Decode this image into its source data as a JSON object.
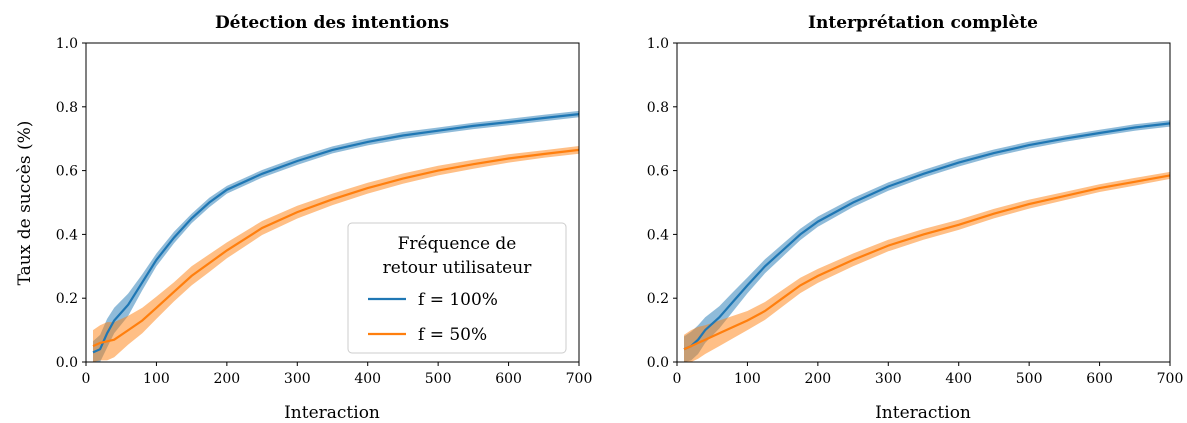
{
  "chart_data": [
    {
      "type": "line",
      "title": "Détection des intentions",
      "xlabel": "Interaction",
      "ylabel": "Taux de succès (%)",
      "xlim": [
        0,
        700
      ],
      "ylim": [
        0,
        1.0
      ],
      "xticks": [
        "0",
        "100",
        "200",
        "300",
        "400",
        "500",
        "600",
        "700"
      ],
      "yticks": [
        "0.0",
        "0.2",
        "0.4",
        "0.6",
        "0.8",
        "1.0"
      ],
      "grid": false,
      "legend": {
        "title": "Fréquence de\nretour utilisateur",
        "placement": "lower-right"
      },
      "series": [
        {
          "name": "f = 100%",
          "color": "#1f77b4",
          "x": [
            10,
            20,
            30,
            40,
            60,
            80,
            100,
            125,
            150,
            175,
            200,
            250,
            300,
            350,
            400,
            450,
            500,
            550,
            600,
            650,
            700
          ],
          "y": [
            0.03,
            0.04,
            0.09,
            0.13,
            0.18,
            0.25,
            0.32,
            0.39,
            0.45,
            0.5,
            0.54,
            0.59,
            0.63,
            0.665,
            0.69,
            0.71,
            0.725,
            0.74,
            0.752,
            0.765,
            0.777
          ],
          "band": [
            0.035,
            0.045,
            0.045,
            0.04,
            0.035,
            0.025,
            0.02,
            0.018,
            0.015,
            0.015,
            0.012,
            0.012,
            0.012,
            0.011,
            0.011,
            0.011,
            0.01,
            0.01,
            0.01,
            0.01,
            0.01
          ]
        },
        {
          "name": "f = 50%",
          "color": "#ff7f0e",
          "x": [
            10,
            20,
            30,
            40,
            60,
            80,
            100,
            125,
            150,
            175,
            200,
            250,
            300,
            350,
            400,
            450,
            500,
            550,
            600,
            650,
            700
          ],
          "y": [
            0.05,
            0.06,
            0.065,
            0.07,
            0.1,
            0.13,
            0.17,
            0.22,
            0.27,
            0.31,
            0.35,
            0.42,
            0.47,
            0.51,
            0.545,
            0.575,
            0.6,
            0.62,
            0.638,
            0.652,
            0.665
          ],
          "band": [
            0.05,
            0.055,
            0.06,
            0.055,
            0.045,
            0.04,
            0.035,
            0.03,
            0.03,
            0.028,
            0.025,
            0.022,
            0.02,
            0.018,
            0.017,
            0.016,
            0.015,
            0.014,
            0.013,
            0.012,
            0.012
          ]
        }
      ]
    },
    {
      "type": "line",
      "title": "Interprétation complète",
      "xlabel": "Interaction",
      "ylabel": "",
      "xlim": [
        0,
        700
      ],
      "ylim": [
        0,
        1.0
      ],
      "xticks": [
        "0",
        "100",
        "200",
        "300",
        "400",
        "500",
        "600",
        "700"
      ],
      "yticks": [
        "0.0",
        "0.2",
        "0.4",
        "0.6",
        "0.8",
        "1.0"
      ],
      "grid": false,
      "series": [
        {
          "color": "#1f77b4",
          "x": [
            10,
            20,
            30,
            40,
            60,
            80,
            100,
            125,
            150,
            175,
            200,
            250,
            300,
            350,
            400,
            450,
            500,
            550,
            600,
            650,
            700
          ],
          "y": [
            0.04,
            0.05,
            0.07,
            0.1,
            0.14,
            0.19,
            0.24,
            0.3,
            0.35,
            0.4,
            0.44,
            0.5,
            0.55,
            0.59,
            0.625,
            0.655,
            0.68,
            0.7,
            0.718,
            0.735,
            0.748
          ],
          "band": [
            0.04,
            0.045,
            0.045,
            0.04,
            0.035,
            0.03,
            0.025,
            0.022,
            0.02,
            0.018,
            0.016,
            0.014,
            0.013,
            0.012,
            0.012,
            0.011,
            0.011,
            0.01,
            0.01,
            0.01,
            0.01
          ]
        },
        {
          "color": "#ff7f0e",
          "x": [
            10,
            20,
            30,
            40,
            60,
            80,
            100,
            125,
            150,
            175,
            200,
            250,
            300,
            350,
            400,
            450,
            500,
            550,
            600,
            650,
            700
          ],
          "y": [
            0.04,
            0.05,
            0.06,
            0.07,
            0.09,
            0.11,
            0.13,
            0.16,
            0.2,
            0.24,
            0.27,
            0.32,
            0.365,
            0.4,
            0.43,
            0.465,
            0.495,
            0.52,
            0.545,
            0.565,
            0.585
          ],
          "band": [
            0.045,
            0.05,
            0.05,
            0.045,
            0.04,
            0.035,
            0.03,
            0.028,
            0.026,
            0.024,
            0.022,
            0.02,
            0.018,
            0.017,
            0.016,
            0.015,
            0.014,
            0.013,
            0.012,
            0.012,
            0.011
          ]
        }
      ]
    }
  ]
}
